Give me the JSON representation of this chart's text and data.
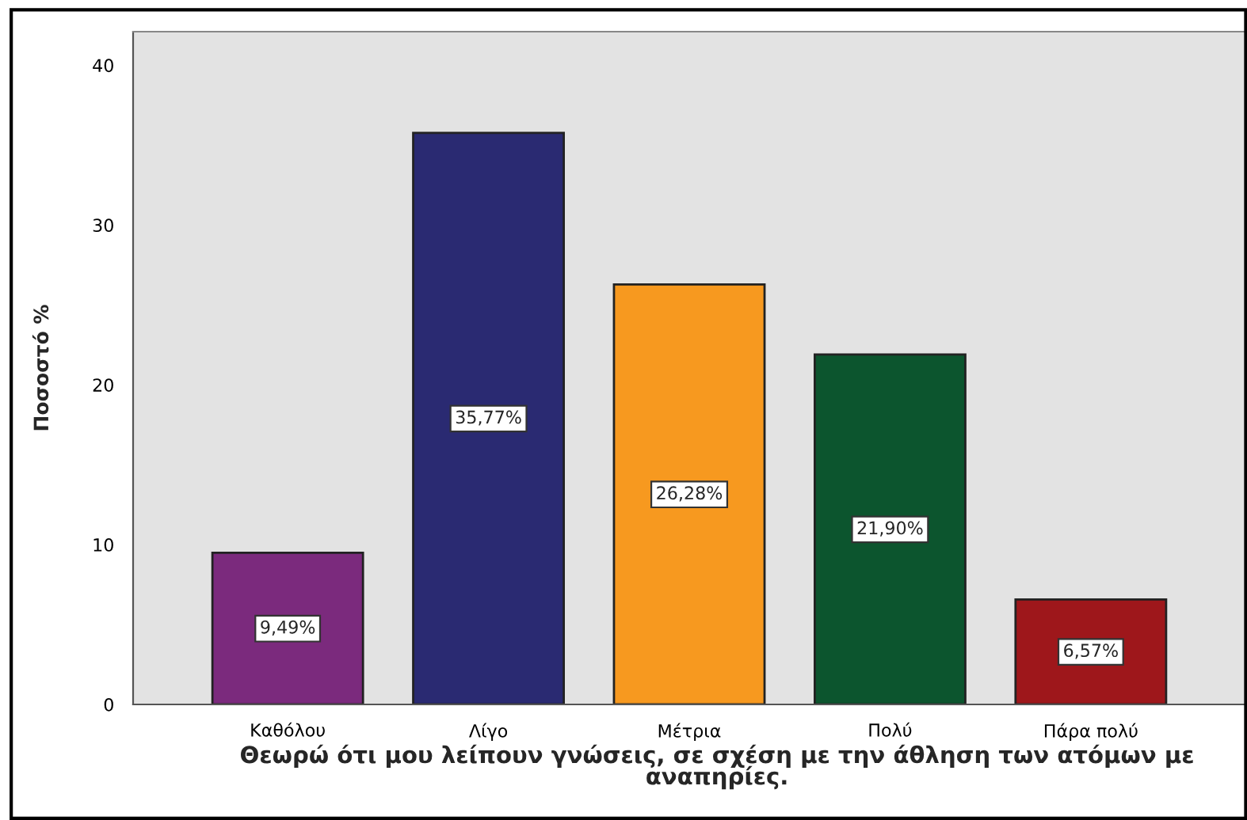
{
  "chart_data": {
    "type": "bar",
    "categories": [
      "Καθόλου",
      "Λίγο",
      "Μέτρια",
      "Πολύ",
      "Πάρα πολύ"
    ],
    "values": [
      9.49,
      35.77,
      26.28,
      21.9,
      6.57
    ],
    "colors": [
      "#7b2a7d",
      "#2a2a72",
      "#f7991f",
      "#0c552e",
      "#9e171b"
    ],
    "value_labels": [
      "9,49%",
      "35,77%",
      "26,28%",
      "21,90%",
      "6,57%"
    ],
    "xlabel": "Θεωρώ ότι μου λείπουν γνώσεις, σε σχέση με την άθληση των ατόμων με αναπηρίες.",
    "ylabel": "Ποσοστό %",
    "ylim": [
      0,
      42.1
    ],
    "yticks": [
      0,
      10,
      20,
      30,
      40
    ],
    "grid": false,
    "legend": false
  }
}
